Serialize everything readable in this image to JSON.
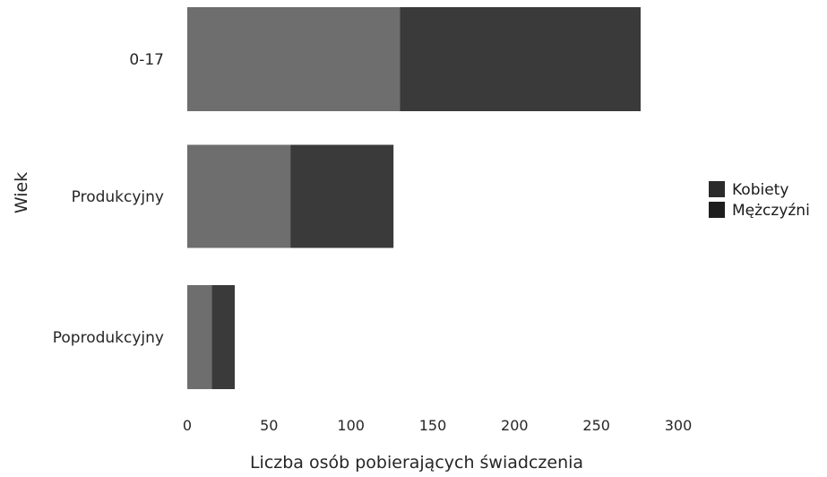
{
  "chart_data": {
    "type": "bar",
    "orientation": "horizontal",
    "stacked": true,
    "categories": [
      "0-17",
      "Produkcyjny",
      "Poprodukcyjny"
    ],
    "series": [
      {
        "name": "Kobiety",
        "values": [
          130,
          63,
          15
        ],
        "color": "#6e6e6e"
      },
      {
        "name": "Mężczyźni",
        "values": [
          147,
          63,
          14
        ],
        "color": "#3a3a3a"
      }
    ],
    "title": "",
    "xlabel": "Liczba osób pobierających świadczenia",
    "ylabel": "Wiek",
    "xlim": [
      0,
      300
    ],
    "xticks": [
      "0",
      "50",
      "100",
      "150",
      "200",
      "250",
      "300"
    ],
    "grid": false,
    "legend_position": "right"
  }
}
